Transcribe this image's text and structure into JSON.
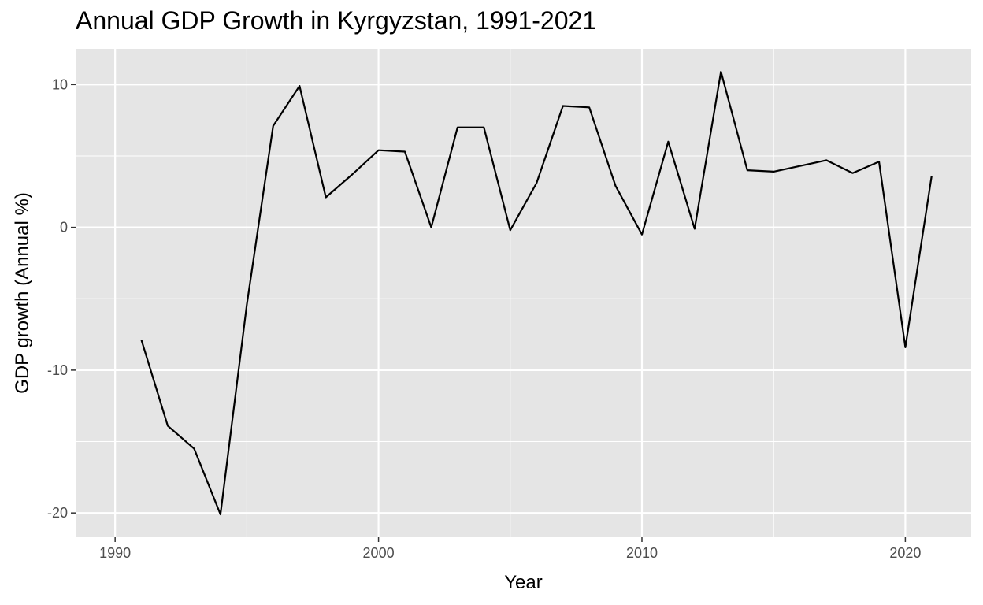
{
  "chart_data": {
    "type": "line",
    "title": "Annual GDP Growth in Kyrgyzstan, 1991-2021",
    "xlabel": "Year",
    "ylabel": "GDP growth (Annual %)",
    "xlim": [
      1988.5,
      2022.5
    ],
    "ylim": [
      -21.7,
      12.5
    ],
    "x_ticks": [
      1990,
      2000,
      2010,
      2020
    ],
    "x_tick_labels": [
      "1990",
      "2000",
      "2010",
      "2020"
    ],
    "y_ticks": [
      -20,
      -10,
      0,
      10
    ],
    "y_tick_labels": [
      "-20",
      "-10",
      "0",
      "10"
    ],
    "grid": true,
    "background": "#e5e5e5",
    "grid_color": "#ffffff",
    "line_color": "#000000",
    "series": [
      {
        "x": [
          1991,
          1992,
          1993,
          1994,
          1995,
          1996,
          1997,
          1998,
          1999,
          2000,
          2001,
          2002,
          2003,
          2004,
          2005,
          2006,
          2007,
          2008,
          2009,
          2010,
          2011,
          2012,
          2013,
          2014,
          2015,
          2016,
          2017,
          2018,
          2019,
          2020,
          2021
        ],
        "values": [
          -7.9,
          -13.9,
          -15.5,
          -20.1,
          -5.4,
          7.1,
          9.9,
          2.1,
          3.7,
          5.4,
          5.3,
          0.0,
          7.0,
          7.0,
          -0.2,
          3.1,
          8.5,
          8.4,
          2.9,
          -0.5,
          6.0,
          -0.1,
          10.9,
          4.0,
          3.9,
          4.3,
          4.7,
          3.8,
          4.6,
          -8.4,
          3.6
        ]
      }
    ]
  }
}
